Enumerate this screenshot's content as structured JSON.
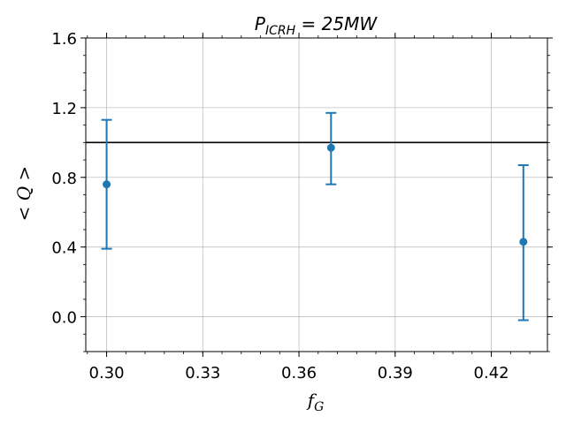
{
  "chart_data": {
    "type": "scatter",
    "title": {
      "main": "P",
      "sub": "ICRH",
      "rest": " = 25MW"
    },
    "xlabel": {
      "main": "f",
      "sub": "G"
    },
    "ylabel": "< Q >",
    "xlim": [
      0.2935,
      0.4375
    ],
    "ylim": [
      -0.2,
      1.6
    ],
    "xticks": [
      0.3,
      0.33,
      0.36,
      0.39,
      0.42
    ],
    "xtick_labels": [
      "0.30",
      "0.33",
      "0.36",
      "0.39",
      "0.42"
    ],
    "yticks": [
      0.0,
      0.4,
      0.8,
      1.2,
      1.6
    ],
    "ytick_labels": [
      "0.0",
      "0.4",
      "0.8",
      "1.2",
      "1.6"
    ],
    "grid": true,
    "reference_line": {
      "y": 1.0,
      "color": "#000000"
    },
    "series": [
      {
        "color": "#1f77b4",
        "points": [
          {
            "x": 0.3,
            "y": 0.76,
            "err_low": 0.39,
            "err_high": 1.13
          },
          {
            "x": 0.37,
            "y": 0.97,
            "err_low": 0.76,
            "err_high": 1.17
          },
          {
            "x": 0.43,
            "y": 0.43,
            "err_low": -0.02,
            "err_high": 0.87
          }
        ]
      }
    ]
  }
}
